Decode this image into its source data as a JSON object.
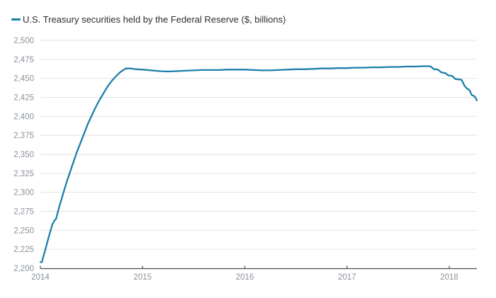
{
  "colors": {
    "line": "#1c7faa",
    "gridline": "#e2e2e2",
    "axis": "#4d4d4d",
    "tick_label": "#8b9199",
    "legend_text": "#2e2e2e",
    "background": "#ffffff"
  },
  "legend": {
    "position": "top-left"
  },
  "chart_data": {
    "type": "line",
    "title": "",
    "xlabel": "",
    "ylabel": "",
    "x_unit": "year (decimal)",
    "y_unit": "$ billions",
    "grid": true,
    "legend_position": "top-left",
    "xlim": [
      2014,
      2018.27
    ],
    "ylim": [
      2200,
      2500
    ],
    "xticks": [
      {
        "value": 2014,
        "label": "2014"
      },
      {
        "value": 2015,
        "label": "2015"
      },
      {
        "value": 2016,
        "label": "2016"
      },
      {
        "value": 2017,
        "label": "2017"
      },
      {
        "value": 2018,
        "label": "2018"
      }
    ],
    "yticks": [
      {
        "value": 2200,
        "label": "2,200"
      },
      {
        "value": 2225,
        "label": "2,225"
      },
      {
        "value": 2250,
        "label": "2,250"
      },
      {
        "value": 2275,
        "label": "2,275"
      },
      {
        "value": 2300,
        "label": "2,300"
      },
      {
        "value": 2325,
        "label": "2,325"
      },
      {
        "value": 2350,
        "label": "2,350"
      },
      {
        "value": 2375,
        "label": "2,375"
      },
      {
        "value": 2400,
        "label": "2,400"
      },
      {
        "value": 2425,
        "label": "2,425"
      },
      {
        "value": 2450,
        "label": "2,450"
      },
      {
        "value": 2475,
        "label": "2,475"
      },
      {
        "value": 2500,
        "label": "2,500"
      }
    ],
    "series": [
      {
        "name": "U.S. Treasury securities held by the Federal Reserve ($, billions)",
        "points": [
          [
            2014.0,
            2208
          ],
          [
            2014.014,
            2208
          ],
          [
            2014.049,
            2225
          ],
          [
            2014.083,
            2242
          ],
          [
            2014.118,
            2258
          ],
          [
            2014.139,
            2263
          ],
          [
            2014.153,
            2265
          ],
          [
            2014.187,
            2282
          ],
          [
            2014.222,
            2298
          ],
          [
            2014.256,
            2313
          ],
          [
            2014.291,
            2327
          ],
          [
            2014.326,
            2341
          ],
          [
            2014.36,
            2354
          ],
          [
            2014.395,
            2366
          ],
          [
            2014.43,
            2378
          ],
          [
            2014.464,
            2390
          ],
          [
            2014.499,
            2400
          ],
          [
            2014.534,
            2410
          ],
          [
            2014.568,
            2419
          ],
          [
            2014.603,
            2427
          ],
          [
            2014.638,
            2435
          ],
          [
            2014.672,
            2442
          ],
          [
            2014.707,
            2448
          ],
          [
            2014.742,
            2453
          ],
          [
            2014.776,
            2457.5
          ],
          [
            2014.811,
            2461
          ],
          [
            2014.839,
            2463
          ],
          [
            2014.88,
            2463
          ],
          [
            2014.93,
            2462
          ],
          [
            2015.0,
            2461.5
          ],
          [
            2015.08,
            2460.5
          ],
          [
            2015.17,
            2459.5
          ],
          [
            2015.25,
            2459
          ],
          [
            2015.33,
            2459.5
          ],
          [
            2015.42,
            2460
          ],
          [
            2015.5,
            2460.5
          ],
          [
            2015.58,
            2461
          ],
          [
            2015.67,
            2461
          ],
          [
            2015.75,
            2461
          ],
          [
            2015.83,
            2461.5
          ],
          [
            2015.92,
            2461.5
          ],
          [
            2016.0,
            2461.5
          ],
          [
            2016.08,
            2461
          ],
          [
            2016.17,
            2460.5
          ],
          [
            2016.25,
            2460.5
          ],
          [
            2016.33,
            2461
          ],
          [
            2016.42,
            2461.5
          ],
          [
            2016.5,
            2462
          ],
          [
            2016.58,
            2462
          ],
          [
            2016.67,
            2462.5
          ],
          [
            2016.75,
            2463
          ],
          [
            2016.83,
            2463
          ],
          [
            2016.92,
            2463.5
          ],
          [
            2017.0,
            2463.5
          ],
          [
            2017.08,
            2464
          ],
          [
            2017.17,
            2464
          ],
          [
            2017.25,
            2464.5
          ],
          [
            2017.33,
            2464.5
          ],
          [
            2017.42,
            2465
          ],
          [
            2017.5,
            2465
          ],
          [
            2017.58,
            2465.5
          ],
          [
            2017.67,
            2465.5
          ],
          [
            2017.75,
            2466
          ],
          [
            2017.8,
            2466
          ],
          [
            2017.82,
            2465.5
          ],
          [
            2017.85,
            2462
          ],
          [
            2017.89,
            2461.5
          ],
          [
            2017.92,
            2458
          ],
          [
            2017.96,
            2457
          ],
          [
            2017.99,
            2454
          ],
          [
            2018.03,
            2453
          ],
          [
            2018.06,
            2449
          ],
          [
            2018.1,
            2448.5
          ],
          [
            2018.12,
            2448
          ],
          [
            2018.15,
            2440
          ],
          [
            2018.17,
            2437
          ],
          [
            2018.2,
            2434
          ],
          [
            2018.22,
            2428
          ],
          [
            2018.24,
            2427
          ],
          [
            2018.26,
            2424
          ],
          [
            2018.265,
            2422
          ],
          [
            2018.27,
            2421
          ]
        ]
      }
    ]
  }
}
